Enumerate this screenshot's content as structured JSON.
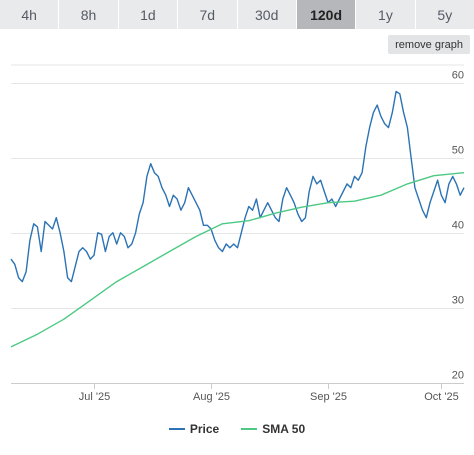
{
  "range_tabs": [
    {
      "label": "4h",
      "active": false
    },
    {
      "label": "8h",
      "active": false
    },
    {
      "label": "1d",
      "active": false
    },
    {
      "label": "7d",
      "active": false
    },
    {
      "label": "30d",
      "active": false
    },
    {
      "label": "120d",
      "active": true
    },
    {
      "label": "1y",
      "active": false
    },
    {
      "label": "5y",
      "active": false
    }
  ],
  "remove_graph_label": "remove graph",
  "chart_data": {
    "type": "line",
    "title": "",
    "xlabel": "",
    "ylabel": "",
    "x_range": [
      "2025-06-09",
      "2025-10-07"
    ],
    "ylim": [
      20,
      63
    ],
    "yticks": [
      20,
      30,
      40,
      50,
      60
    ],
    "xticks": [
      {
        "date": "2025-07-01",
        "label": "Jul '25"
      },
      {
        "date": "2025-08-01",
        "label": "Aug '25"
      },
      {
        "date": "2025-09-01",
        "label": "Sep '25"
      },
      {
        "date": "2025-10-01",
        "label": "Oct '25"
      }
    ],
    "grid": "horizontal",
    "legend_position": "bottom-center",
    "series": [
      {
        "name": "Price",
        "color": "#2b73b5",
        "points": [
          [
            "2025-06-09",
            36.5
          ],
          [
            "2025-06-10",
            35.8
          ],
          [
            "2025-06-11",
            34.0
          ],
          [
            "2025-06-12",
            33.5
          ],
          [
            "2025-06-13",
            34.8
          ],
          [
            "2025-06-14",
            39.0
          ],
          [
            "2025-06-15",
            41.2
          ],
          [
            "2025-06-16",
            40.8
          ],
          [
            "2025-06-17",
            37.5
          ],
          [
            "2025-06-18",
            41.5
          ],
          [
            "2025-06-19",
            41.0
          ],
          [
            "2025-06-20",
            40.5
          ],
          [
            "2025-06-21",
            42.0
          ],
          [
            "2025-06-22",
            40.0
          ],
          [
            "2025-06-23",
            37.5
          ],
          [
            "2025-06-24",
            34.0
          ],
          [
            "2025-06-25",
            33.5
          ],
          [
            "2025-06-26",
            35.5
          ],
          [
            "2025-06-27",
            37.5
          ],
          [
            "2025-06-28",
            38.0
          ],
          [
            "2025-06-29",
            37.5
          ],
          [
            "2025-06-30",
            36.5
          ],
          [
            "2025-07-01",
            37.0
          ],
          [
            "2025-07-02",
            40.0
          ],
          [
            "2025-07-03",
            39.8
          ],
          [
            "2025-07-04",
            37.5
          ],
          [
            "2025-07-05",
            39.5
          ],
          [
            "2025-07-06",
            40.0
          ],
          [
            "2025-07-07",
            38.5
          ],
          [
            "2025-07-08",
            40.0
          ],
          [
            "2025-07-09",
            39.5
          ],
          [
            "2025-07-10",
            38.0
          ],
          [
            "2025-07-11",
            38.5
          ],
          [
            "2025-07-12",
            40.0
          ],
          [
            "2025-07-13",
            42.5
          ],
          [
            "2025-07-14",
            44.0
          ],
          [
            "2025-07-15",
            47.5
          ],
          [
            "2025-07-16",
            49.2
          ],
          [
            "2025-07-17",
            48.0
          ],
          [
            "2025-07-18",
            47.5
          ],
          [
            "2025-07-19",
            46.0
          ],
          [
            "2025-07-20",
            45.0
          ],
          [
            "2025-07-21",
            43.5
          ],
          [
            "2025-07-22",
            45.0
          ],
          [
            "2025-07-23",
            44.5
          ],
          [
            "2025-07-24",
            43.0
          ],
          [
            "2025-07-25",
            44.0
          ],
          [
            "2025-07-26",
            46.0
          ],
          [
            "2025-07-27",
            45.0
          ],
          [
            "2025-07-28",
            44.0
          ],
          [
            "2025-07-29",
            43.0
          ],
          [
            "2025-07-30",
            41.0
          ],
          [
            "2025-07-31",
            41.0
          ],
          [
            "2025-08-01",
            40.5
          ],
          [
            "2025-08-02",
            39.0
          ],
          [
            "2025-08-03",
            38.0
          ],
          [
            "2025-08-04",
            37.5
          ],
          [
            "2025-08-05",
            38.5
          ],
          [
            "2025-08-06",
            38.0
          ],
          [
            "2025-08-07",
            38.5
          ],
          [
            "2025-08-08",
            38.0
          ],
          [
            "2025-08-09",
            40.0
          ],
          [
            "2025-08-10",
            42.0
          ],
          [
            "2025-08-11",
            43.5
          ],
          [
            "2025-08-12",
            43.0
          ],
          [
            "2025-08-13",
            44.5
          ],
          [
            "2025-08-14",
            42.0
          ],
          [
            "2025-08-15",
            43.0
          ],
          [
            "2025-08-16",
            44.0
          ],
          [
            "2025-08-17",
            43.0
          ],
          [
            "2025-08-18",
            42.0
          ],
          [
            "2025-08-19",
            41.5
          ],
          [
            "2025-08-20",
            44.5
          ],
          [
            "2025-08-21",
            46.0
          ],
          [
            "2025-08-22",
            45.0
          ],
          [
            "2025-08-23",
            44.0
          ],
          [
            "2025-08-24",
            42.5
          ],
          [
            "2025-08-25",
            41.5
          ],
          [
            "2025-08-26",
            42.0
          ],
          [
            "2025-08-27",
            45.5
          ],
          [
            "2025-08-28",
            47.5
          ],
          [
            "2025-08-29",
            46.5
          ],
          [
            "2025-08-30",
            47.0
          ],
          [
            "2025-08-31",
            45.5
          ],
          [
            "2025-09-01",
            44.0
          ],
          [
            "2025-09-02",
            44.5
          ],
          [
            "2025-09-03",
            43.5
          ],
          [
            "2025-09-04",
            44.5
          ],
          [
            "2025-09-05",
            45.5
          ],
          [
            "2025-09-06",
            46.5
          ],
          [
            "2025-09-07",
            46.0
          ],
          [
            "2025-09-08",
            47.5
          ],
          [
            "2025-09-09",
            47.0
          ],
          [
            "2025-09-10",
            48.0
          ],
          [
            "2025-09-11",
            51.5
          ],
          [
            "2025-09-12",
            54.0
          ],
          [
            "2025-09-13",
            56.0
          ],
          [
            "2025-09-14",
            57.0
          ],
          [
            "2025-09-15",
            55.5
          ],
          [
            "2025-09-16",
            54.5
          ],
          [
            "2025-09-17",
            54.0
          ],
          [
            "2025-09-18",
            56.0
          ],
          [
            "2025-09-19",
            58.8
          ],
          [
            "2025-09-20",
            58.5
          ],
          [
            "2025-09-21",
            56.0
          ],
          [
            "2025-09-22",
            54.0
          ],
          [
            "2025-09-23",
            50.0
          ],
          [
            "2025-09-24",
            46.0
          ],
          [
            "2025-09-25",
            44.5
          ],
          [
            "2025-09-26",
            43.0
          ],
          [
            "2025-09-27",
            42.0
          ],
          [
            "2025-09-28",
            44.0
          ],
          [
            "2025-09-29",
            45.5
          ],
          [
            "2025-09-30",
            47.0
          ],
          [
            "2025-10-01",
            45.0
          ],
          [
            "2025-10-02",
            44.0
          ],
          [
            "2025-10-03",
            46.5
          ],
          [
            "2025-10-04",
            47.5
          ],
          [
            "2025-10-05",
            46.5
          ],
          [
            "2025-10-06",
            45.0
          ],
          [
            "2025-10-07",
            46.0
          ]
        ]
      },
      {
        "name": "SMA 50",
        "color": "#4cc983",
        "points": [
          [
            "2025-06-09",
            24.8
          ],
          [
            "2025-06-16",
            26.5
          ],
          [
            "2025-06-23",
            28.5
          ],
          [
            "2025-06-30",
            31.0
          ],
          [
            "2025-07-07",
            33.5
          ],
          [
            "2025-07-14",
            35.5
          ],
          [
            "2025-07-21",
            37.5
          ],
          [
            "2025-07-28",
            39.5
          ],
          [
            "2025-08-04",
            41.2
          ],
          [
            "2025-08-11",
            41.6
          ],
          [
            "2025-08-18",
            42.6
          ],
          [
            "2025-08-25",
            43.4
          ],
          [
            "2025-09-01",
            44.0
          ],
          [
            "2025-09-08",
            44.2
          ],
          [
            "2025-09-15",
            45.0
          ],
          [
            "2025-09-22",
            46.5
          ],
          [
            "2025-09-29",
            47.6
          ],
          [
            "2025-10-07",
            48.0
          ]
        ]
      }
    ]
  }
}
